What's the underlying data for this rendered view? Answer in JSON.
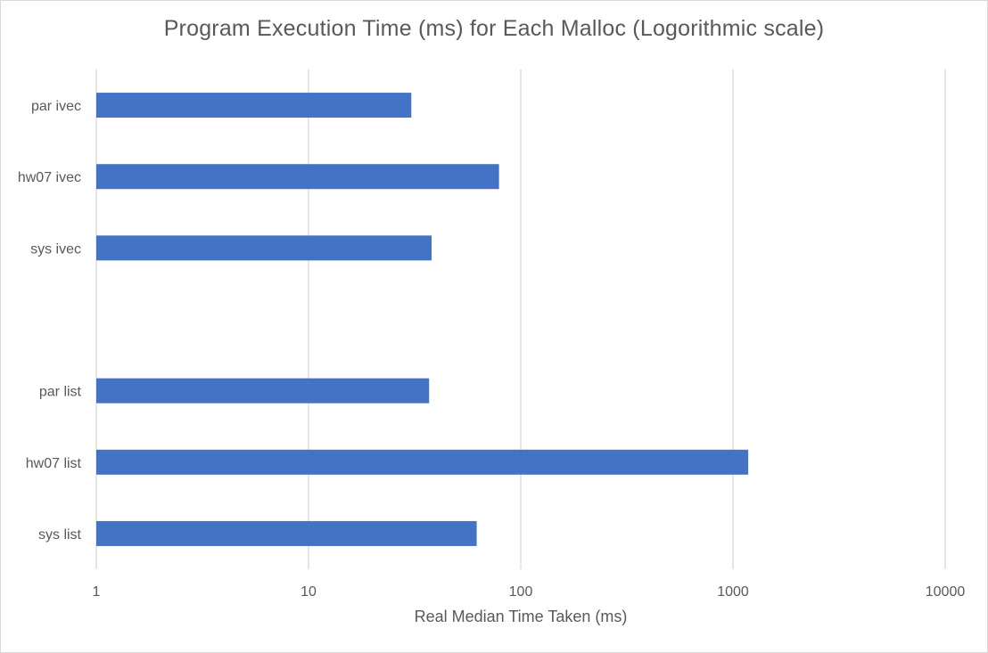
{
  "chart_data": {
    "type": "bar",
    "orientation": "horizontal",
    "title": "Program Execution Time (ms) for Each Malloc (Logorithmic scale)",
    "xlabel": "Real Median Time Taken (ms)",
    "ylabel": "",
    "x_scale": "log",
    "xlim": [
      1,
      10000
    ],
    "x_ticks": [
      "1",
      "10",
      "100",
      "1000",
      "10000"
    ],
    "gridlines": "vertical",
    "legend": "none",
    "bar_color": "#4472c4",
    "categories": [
      "par ivec",
      "hw07 ivec",
      "sys ivec",
      "",
      "par list",
      "hw07 list",
      "sys list"
    ],
    "values": [
      30.5,
      79,
      38,
      null,
      37,
      1180,
      62
    ]
  }
}
